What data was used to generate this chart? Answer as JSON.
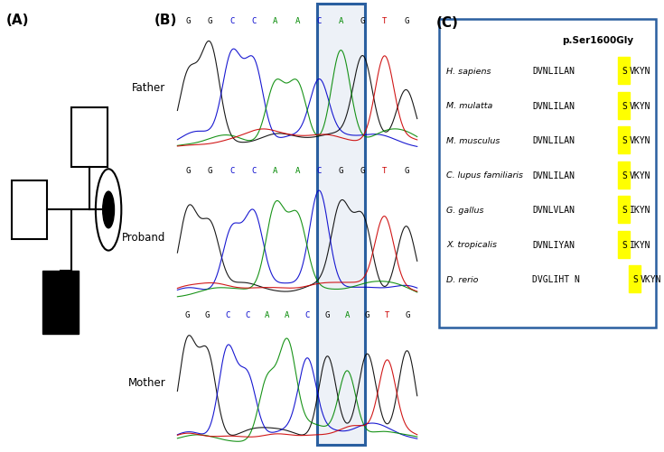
{
  "panel_A_label": "(A)",
  "panel_B_label": "(B)",
  "panel_C_label": "(C)",
  "highlight_color": "#FFFF00",
  "box_color": "#2a5fa0",
  "dna_colors": {
    "G": "#000000",
    "C": "#0000cc",
    "A": "#008800",
    "T": "#cc0000"
  },
  "father_seq": [
    "G",
    "G",
    "C",
    "C",
    "A",
    "A",
    "C",
    "A",
    "G",
    "T",
    "G"
  ],
  "proband_seq": [
    "G",
    "G",
    "C",
    "C",
    "A",
    "A",
    "C",
    "G",
    "G",
    "T",
    "G"
  ],
  "mother_seq": [
    "G",
    "G",
    "C",
    "C",
    "A",
    "A",
    "C",
    "G",
    "A",
    "G",
    "T",
    "G"
  ],
  "father_label": "Father",
  "proband_label": "Proband",
  "mother_label": "Mother",
  "panel_C_title": "p.Ser1600Gly",
  "species": [
    "H. sapiens",
    "M. mulatta",
    "M. musculus",
    "C. lupus familiaris",
    "G. gallus",
    "X. tropicalis",
    "D. rerio"
  ],
  "seq_pre": [
    "DVNLILAN",
    "DVNLILAN",
    "DVNLILAN",
    "DVNLILAN",
    "DVNLVLAN",
    "DVNLIYAN",
    "DVGLIHT N"
  ],
  "seq_s": [
    "S",
    "S",
    "S",
    "S",
    "S",
    "S",
    "S"
  ],
  "seq_post": [
    "VKYN",
    "VKYN",
    "VKYN",
    "VKYN",
    "IKYN",
    "IKYN",
    "VKYN"
  ]
}
